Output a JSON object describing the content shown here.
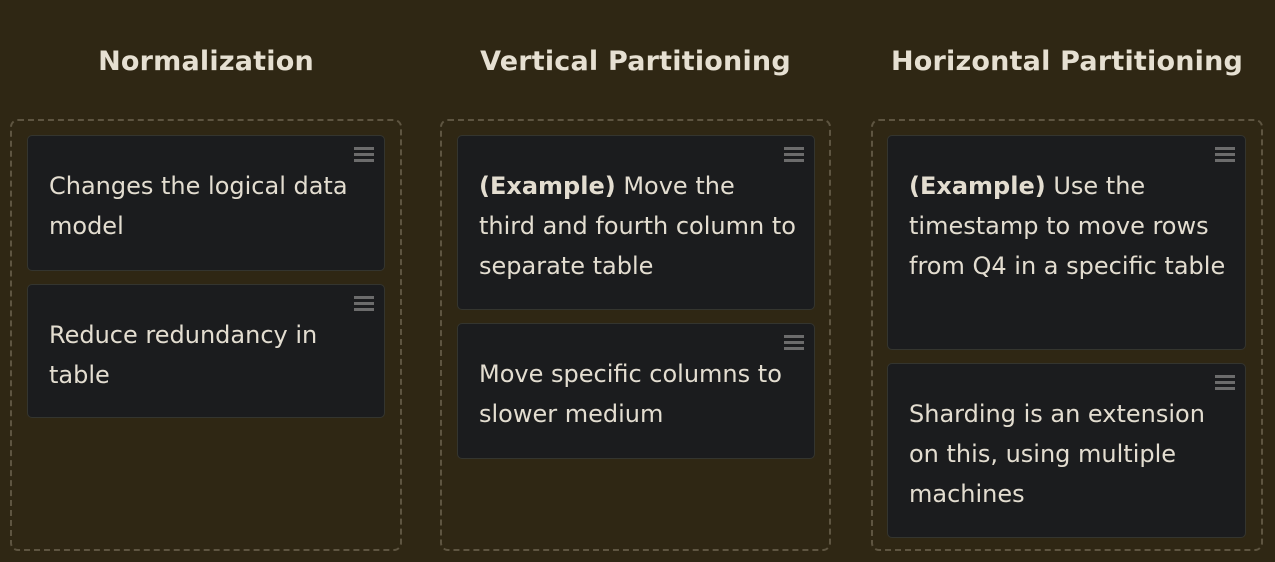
{
  "columns": [
    {
      "title": "Normalization",
      "cards": [
        {
          "prefix": "",
          "text": "Changes the logical data model"
        },
        {
          "prefix": "",
          "text": "Reduce redundancy in table"
        }
      ]
    },
    {
      "title": "Vertical Partitioning",
      "cards": [
        {
          "prefix": "(Example)",
          "text": " Move the third and fourth column to separate table"
        },
        {
          "prefix": "",
          "text": "Move specific columns to slower medium"
        }
      ]
    },
    {
      "title": "Horizontal Partitioning",
      "cards": [
        {
          "prefix": "(Example)",
          "text": " Use the timestamp to move rows from Q4 in a specific table"
        },
        {
          "prefix": "",
          "text": "Sharding is an extension on this, using multiple machines"
        }
      ]
    }
  ],
  "icons": {
    "drag_handle": "hamburger-menu-icon"
  },
  "colors": {
    "background": "#2f2714",
    "card": "#1b1c1e",
    "text": "#e3ddd0",
    "dashed_border": "#5e5541"
  }
}
